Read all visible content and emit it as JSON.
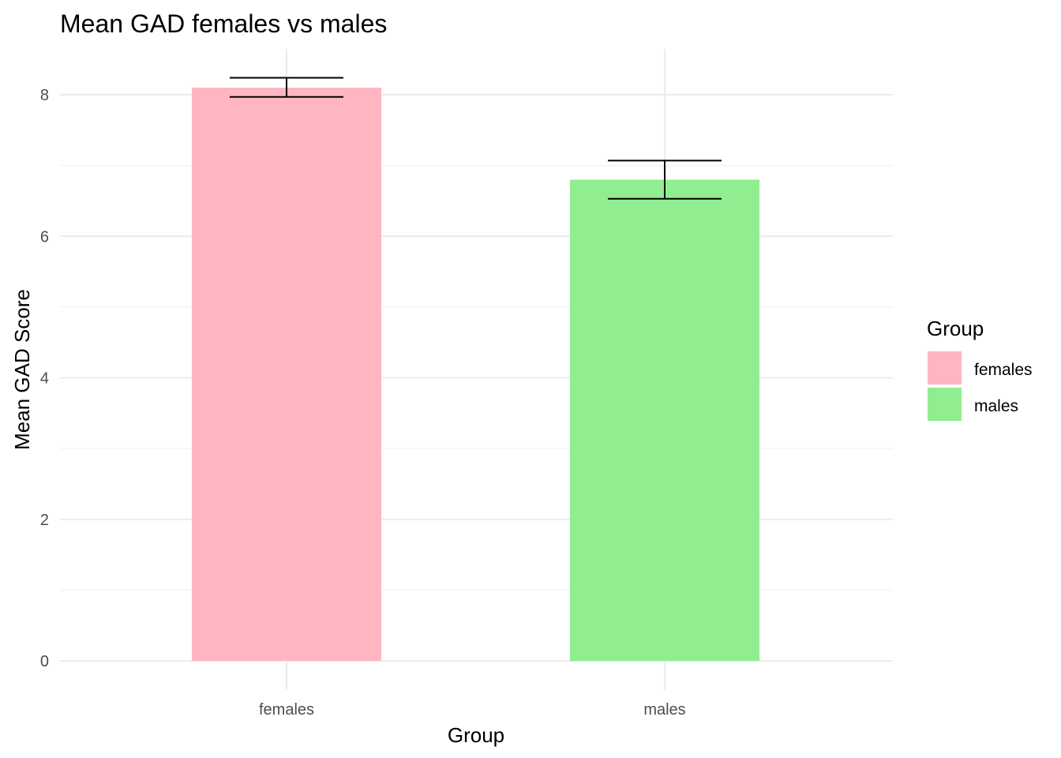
{
  "chart_data": {
    "type": "bar",
    "title": "Mean GAD females vs males",
    "xlabel": "Group",
    "ylabel": "Mean GAD Score",
    "categories": [
      "females",
      "males"
    ],
    "values": [
      8.1,
      6.8
    ],
    "error_bars": [
      {
        "lower": 7.97,
        "upper": 8.24
      },
      {
        "lower": 6.53,
        "upper": 7.07
      }
    ],
    "colors": [
      "#FFB6C1",
      "#90EE90"
    ],
    "ylim": [
      0,
      8.6
    ],
    "y_ticks": [
      0,
      2,
      4,
      6,
      8
    ],
    "grid": true,
    "legend": {
      "title": "Group",
      "placement": "right",
      "items": [
        {
          "label": "females",
          "color": "#FFB6C1"
        },
        {
          "label": "males",
          "color": "#90EE90"
        }
      ]
    }
  }
}
